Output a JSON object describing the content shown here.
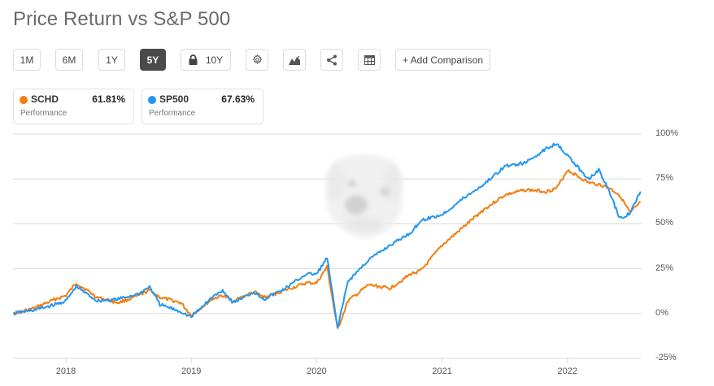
{
  "header": {
    "title": "Price Return vs S&P 500"
  },
  "toolbar": {
    "ranges": [
      {
        "label": "1M",
        "active": false
      },
      {
        "label": "6M",
        "active": false
      },
      {
        "label": "1Y",
        "active": false
      },
      {
        "label": "5Y",
        "active": true
      },
      {
        "label": "10Y",
        "active": false,
        "locked": true
      }
    ],
    "icons": [
      "gear-icon",
      "chart-type-icon",
      "share-icon",
      "table-icon"
    ],
    "add_comparison_label": "+ Add Comparison"
  },
  "legend": [
    {
      "symbol": "SCHD",
      "value": "61.81%",
      "sublabel": "Performance",
      "color": "#f57c0f"
    },
    {
      "symbol": "SP500",
      "value": "67.63%",
      "sublabel": "Performance",
      "color": "#2196f3"
    }
  ],
  "colors": {
    "schd": "#f57c0f",
    "sp500": "#2196f3",
    "grid": "#d9d9d9",
    "active_button": "#4a4a4a"
  },
  "chart_data": {
    "type": "line",
    "title": "Price Return vs S&P 500",
    "xlabel": "",
    "ylabel": "",
    "ylim": [
      -25,
      100
    ],
    "y_ticks": [
      "100%",
      "75%",
      "50%",
      "25%",
      "0%",
      "-25%"
    ],
    "x_ticks": [
      "2018",
      "2019",
      "2020",
      "2021",
      "2022"
    ],
    "grid": true,
    "legend_position": "top-left",
    "x": [
      "2017-08",
      "2017-10",
      "2017-12",
      "2018-01",
      "2018-02",
      "2018-04",
      "2018-06",
      "2018-08",
      "2018-09",
      "2018-10",
      "2018-12",
      "2019-01",
      "2019-03",
      "2019-04",
      "2019-05",
      "2019-07",
      "2019-08",
      "2019-10",
      "2019-12",
      "2020-01",
      "2020-02",
      "2020-03",
      "2020-04",
      "2020-06",
      "2020-08",
      "2020-10",
      "2020-11",
      "2021-01",
      "2021-03",
      "2021-05",
      "2021-07",
      "2021-09",
      "2021-11",
      "2021-12",
      "2022-01",
      "2022-03",
      "2022-04",
      "2022-05",
      "2022-06",
      "2022-07",
      "2022-08"
    ],
    "series": [
      {
        "name": "SCHD",
        "values": [
          0,
          3,
          8,
          10,
          17,
          9,
          6,
          10,
          13,
          9,
          6,
          -1,
          8,
          10,
          7,
          12,
          9,
          13,
          17,
          17,
          26,
          -9,
          7,
          16,
          14,
          22,
          24,
          38,
          48,
          58,
          66,
          69,
          68,
          70,
          80,
          73,
          72,
          70,
          66,
          56,
          62
        ]
      },
      {
        "name": "SP500",
        "values": [
          0,
          2,
          5,
          7,
          15,
          7,
          8,
          11,
          15,
          5,
          1,
          -2,
          9,
          13,
          6,
          12,
          8,
          14,
          22,
          22,
          31,
          -8,
          18,
          30,
          38,
          45,
          52,
          55,
          64,
          72,
          82,
          84,
          92,
          95,
          88,
          75,
          80,
          68,
          53,
          56,
          68
        ]
      }
    ]
  }
}
